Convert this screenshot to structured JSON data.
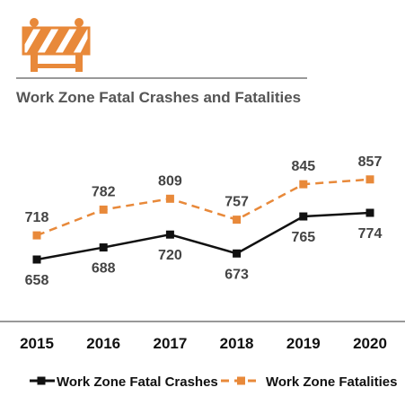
{
  "colors": {
    "accent": "#E8893A",
    "series_crashes": "#111111",
    "series_fatalities": "#E8893A",
    "title": "#555555",
    "axis": "#333333"
  },
  "icon": "road-barrier-icon",
  "chart_data": {
    "type": "line",
    "title": "Work Zone Fatal Crashes and Fatalities",
    "xlabel": "",
    "ylabel": "",
    "categories": [
      "2015",
      "2016",
      "2017",
      "2018",
      "2019",
      "2020"
    ],
    "ylim": [
      600,
      900
    ],
    "grid": false,
    "legend": "bottom",
    "series": [
      {
        "name": "Work Zone Fatal Crashes",
        "values": [
          658,
          688,
          720,
          673,
          765,
          774
        ],
        "style": "solid",
        "marker": "square",
        "color": "#111111",
        "label_position": "below"
      },
      {
        "name": "Work Zone Fatalities",
        "values": [
          718,
          782,
          809,
          757,
          845,
          857
        ],
        "style": "dashed",
        "marker": "square",
        "color": "#E8893A",
        "label_position": "above"
      }
    ]
  }
}
